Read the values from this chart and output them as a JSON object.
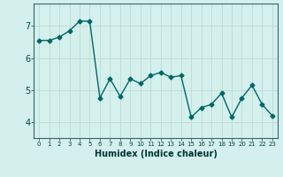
{
  "x": [
    0,
    1,
    2,
    3,
    4,
    5,
    6,
    7,
    8,
    9,
    10,
    11,
    12,
    13,
    14,
    15,
    16,
    17,
    18,
    19,
    20,
    21,
    22,
    23
  ],
  "y": [
    6.55,
    6.55,
    6.65,
    6.85,
    7.15,
    7.15,
    4.75,
    5.35,
    4.8,
    5.35,
    5.2,
    5.45,
    5.55,
    5.4,
    5.45,
    4.15,
    4.45,
    4.55,
    4.9,
    4.15,
    4.75,
    5.15,
    4.55,
    4.2
  ],
  "line_color": "#006666",
  "marker": "D",
  "marker_size": 2.5,
  "bg_color": "#d4f0ec",
  "grid_color": "#c0ddd8",
  "xlabel": "Humidex (Indice chaleur)",
  "xlim": [
    -0.5,
    23.5
  ],
  "ylim": [
    3.5,
    7.7
  ],
  "yticks": [
    4,
    5,
    6,
    7
  ],
  "xtick_labels": [
    "0",
    "1",
    "2",
    "3",
    "4",
    "5",
    "6",
    "7",
    "8",
    "9",
    "10",
    "11",
    "12",
    "13",
    "14",
    "15",
    "16",
    "17",
    "18",
    "19",
    "20",
    "21",
    "22",
    "23"
  ]
}
